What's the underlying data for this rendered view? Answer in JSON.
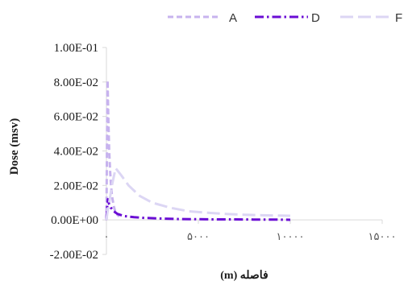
{
  "chart_data": {
    "type": "line",
    "xlabel": "فاصله (m)",
    "ylabel": "Dose (msv)",
    "x_tick_labels": [
      "۰",
      "۵۰۰۰",
      "۱۰۰۰۰",
      "۱۵۰۰۰"
    ],
    "x_ticks": [
      0,
      5000,
      10000,
      15000
    ],
    "y_tick_labels": [
      "1.00E-01",
      "8.00E-02",
      "6.00E-02",
      "4.00E-02",
      "2.00E-02",
      "0.00E+00",
      "-2.00E-02"
    ],
    "y_ticks": [
      0.1,
      0.08,
      0.06,
      0.04,
      0.02,
      0.0,
      -0.02
    ],
    "xlim": [
      0,
      15000
    ],
    "ylim": [
      -0.02,
      0.1
    ],
    "grid": false,
    "legend_position": "top",
    "series": [
      {
        "name": "A",
        "color": "#c7b3ee",
        "dash": "dash",
        "x": [
          0,
          30,
          60,
          100,
          150,
          200,
          250,
          300,
          400,
          500,
          700
        ],
        "y": [
          0.0,
          0.045,
          0.081,
          0.06,
          0.04,
          0.028,
          0.02,
          0.014,
          0.008,
          0.004,
          0.002
        ]
      },
      {
        "name": "D",
        "color": "#6a0dd4",
        "dash": "dashdot",
        "x": [
          0,
          30,
          80,
          150,
          250,
          400,
          600,
          800,
          1000,
          1500,
          2000,
          2500,
          3000,
          4000,
          5000,
          6000,
          7000,
          8000,
          9000,
          10000
        ],
        "y": [
          0.0,
          0.006,
          0.012,
          0.009,
          0.007,
          0.005,
          0.0035,
          0.0028,
          0.0022,
          0.0016,
          0.0012,
          0.001,
          0.0008,
          0.0005,
          0.0004,
          0.0003,
          0.0003,
          0.0002,
          0.0002,
          0.0001
        ]
      },
      {
        "name": "F",
        "color": "#dcd6f4",
        "dash": "longdash",
        "x": [
          0,
          50,
          150,
          300,
          500,
          800,
          1200,
          1800,
          2500,
          3500,
          4500,
          5500,
          6500,
          7500,
          8500,
          9500,
          10000
        ],
        "y": [
          0.0,
          0.004,
          0.01,
          0.02,
          0.03,
          0.026,
          0.02,
          0.014,
          0.01,
          0.007,
          0.005,
          0.0042,
          0.0035,
          0.003,
          0.0027,
          0.0025,
          0.0024
        ]
      }
    ]
  }
}
